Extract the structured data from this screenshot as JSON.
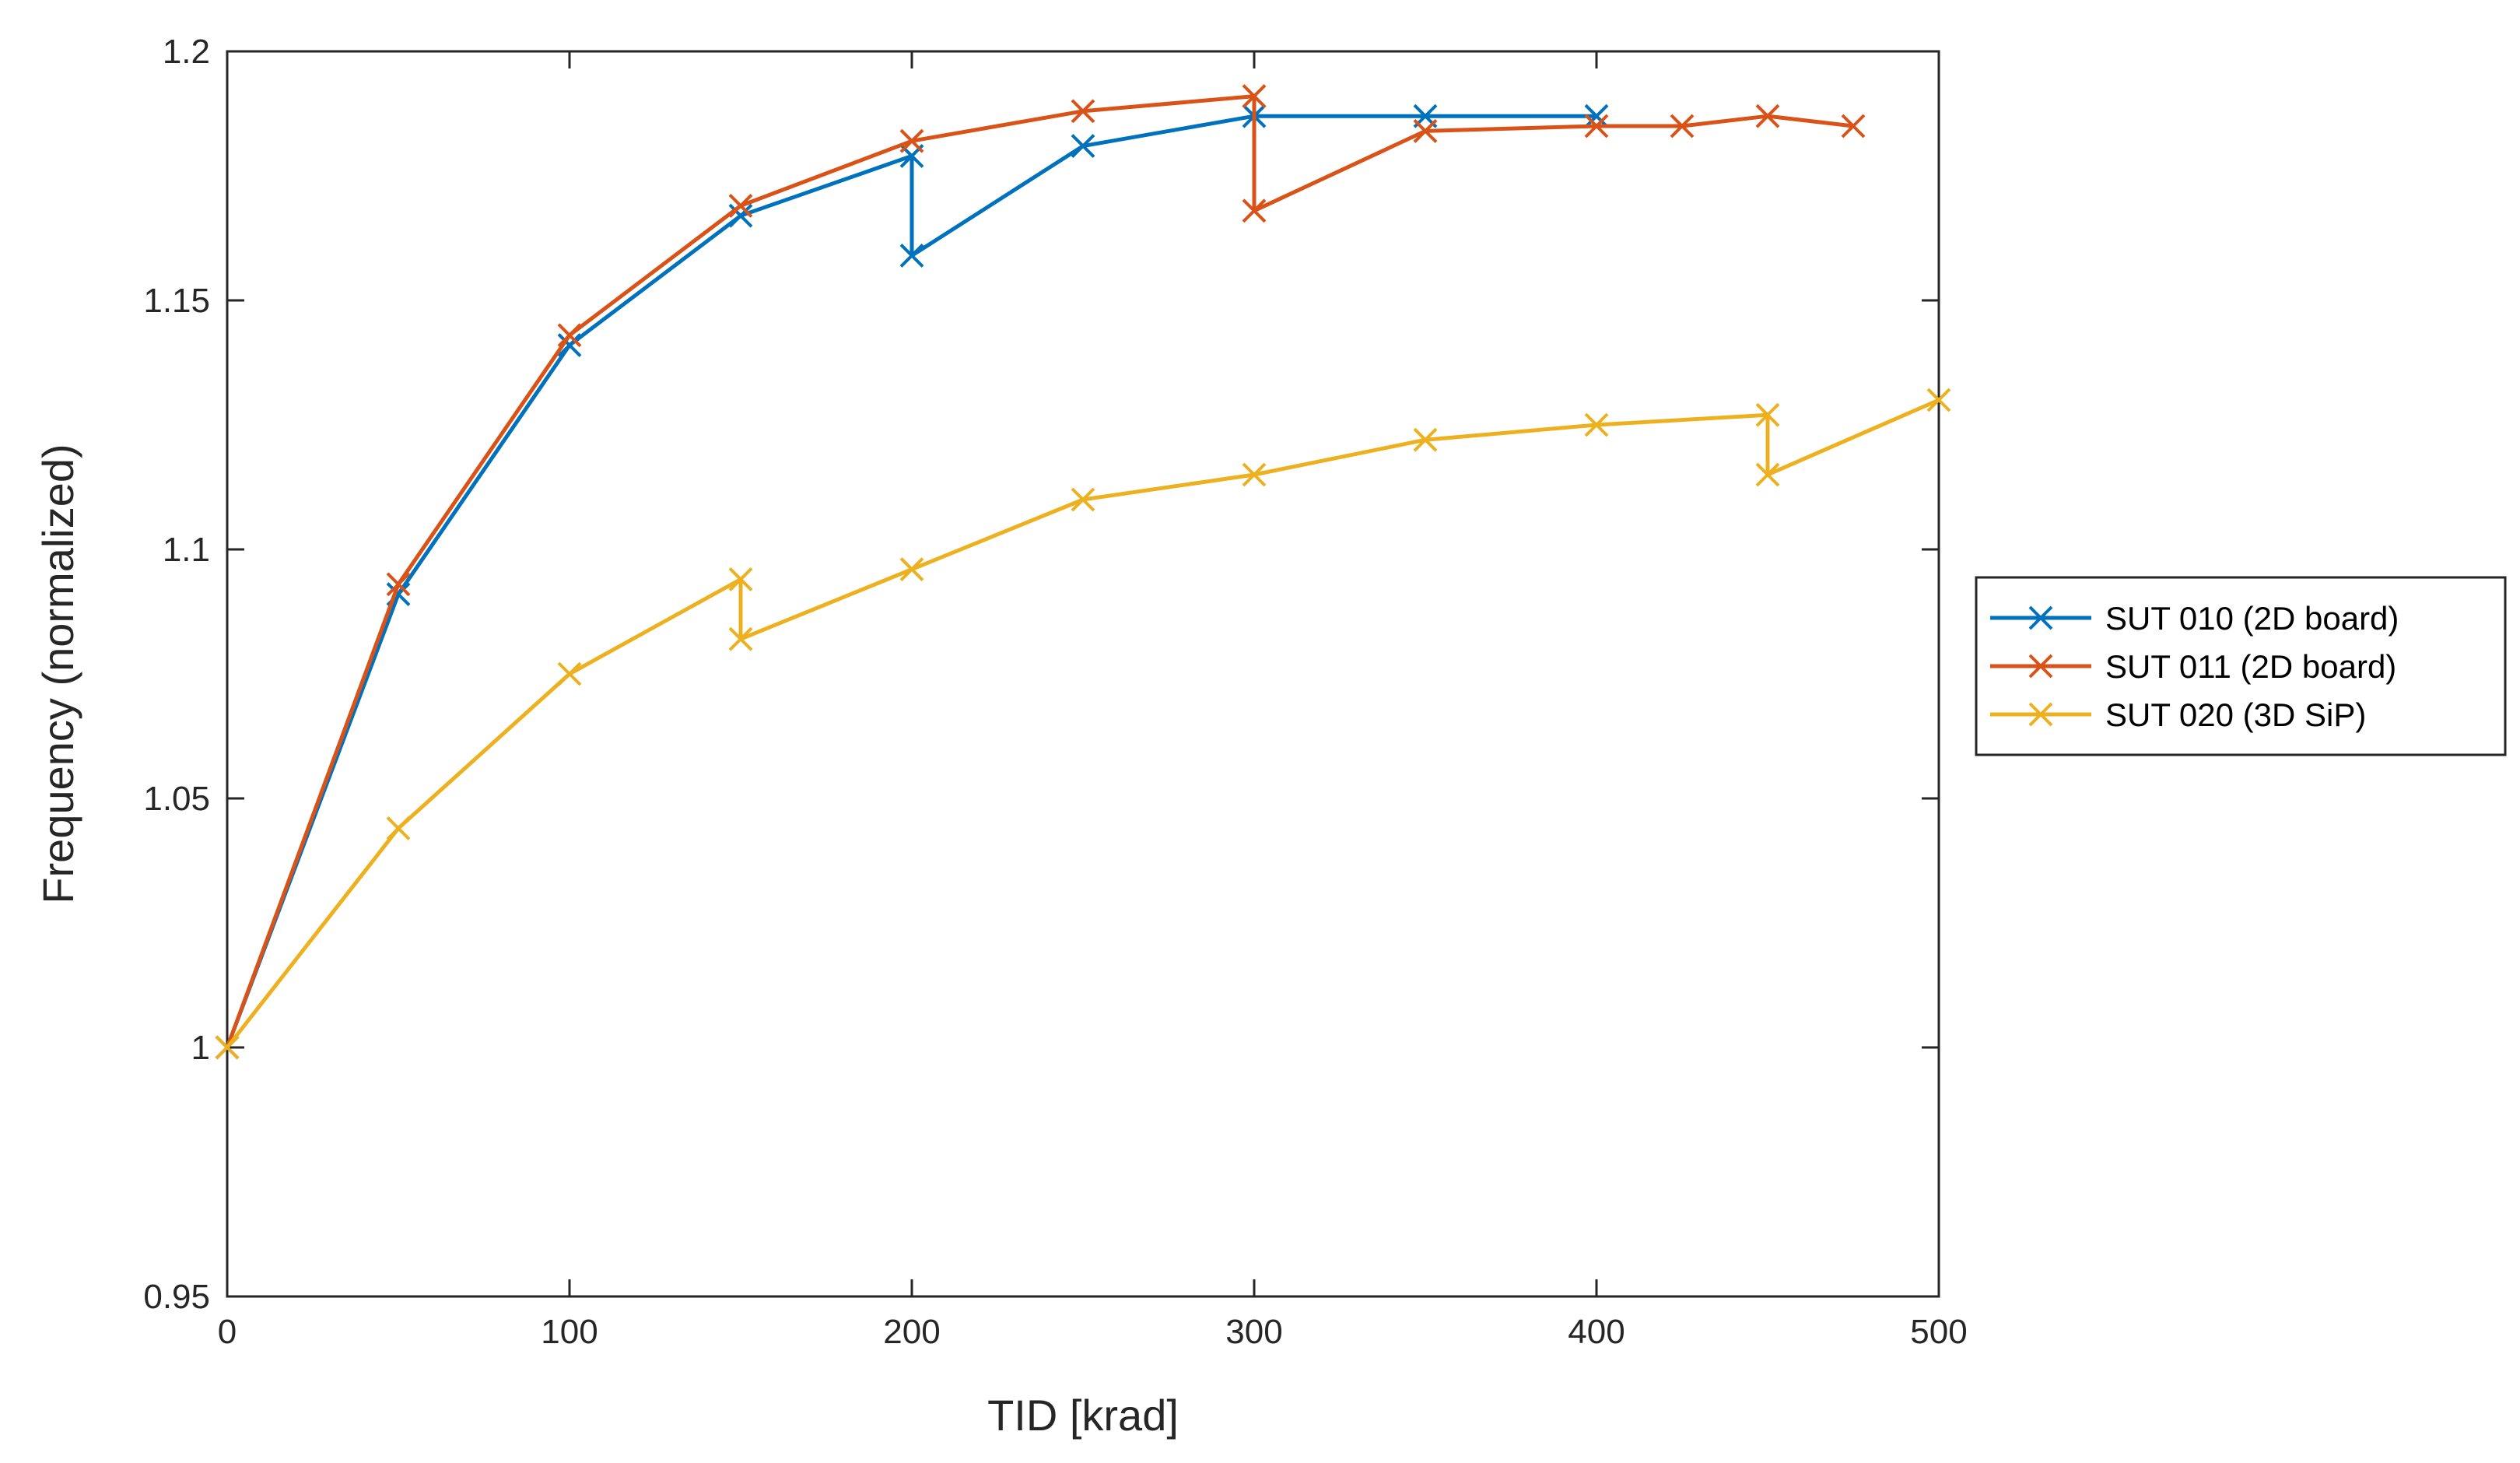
{
  "chart_data": {
    "type": "line",
    "title": "",
    "xlabel": "TID [krad]",
    "ylabel": "Frequency (normalized)",
    "xlim": [
      0,
      500
    ],
    "ylim": [
      0.95,
      1.2
    ],
    "xticks": [
      0,
      100,
      200,
      300,
      400,
      500
    ],
    "xtick_labels": [
      "0",
      "100",
      "200",
      "300",
      "400",
      "500"
    ],
    "yticks": [
      0.95,
      1.0,
      1.05,
      1.1,
      1.15,
      1.2
    ],
    "ytick_labels": [
      "0.95",
      "1",
      "1.05",
      "1.1",
      "1.15",
      "1.2"
    ],
    "grid": false,
    "legend_position": "outside-right",
    "marker": "x",
    "series": [
      {
        "name": "SUT 010 (2D board)",
        "color": "#0072BD",
        "x": [
          0,
          50,
          100,
          150,
          200,
          200,
          250,
          300,
          350,
          400
        ],
        "y": [
          1.0,
          1.091,
          1.141,
          1.167,
          1.179,
          1.159,
          1.181,
          1.187,
          1.187,
          1.187
        ]
      },
      {
        "name": "SUT 011 (2D board)",
        "color": "#D95319",
        "x": [
          0,
          50,
          100,
          150,
          200,
          250,
          300,
          300,
          350,
          400,
          425,
          450,
          475
        ],
        "y": [
          1.0,
          1.093,
          1.143,
          1.169,
          1.182,
          1.188,
          1.191,
          1.168,
          1.184,
          1.185,
          1.185,
          1.187,
          1.185
        ]
      },
      {
        "name": "SUT 020 (3D SiP)",
        "color": "#EDB120",
        "x": [
          0,
          50,
          100,
          150,
          150,
          200,
          250,
          300,
          350,
          400,
          450,
          450,
          500
        ],
        "y": [
          1.0,
          1.044,
          1.075,
          1.094,
          1.082,
          1.096,
          1.11,
          1.115,
          1.122,
          1.125,
          1.127,
          1.115,
          1.13
        ]
      }
    ]
  }
}
